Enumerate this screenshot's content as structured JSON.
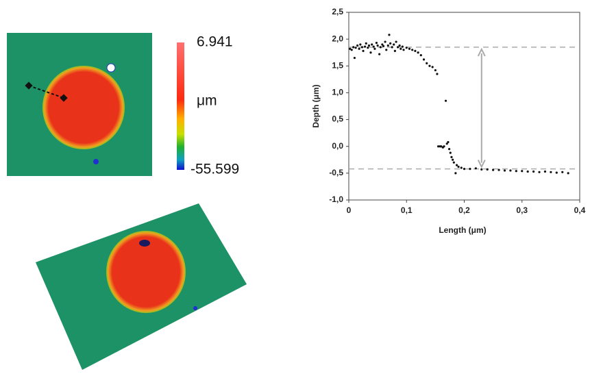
{
  "chart_data": {
    "type": "scatter",
    "xlabel": "Length (μm)",
    "ylabel": "Depth (μm)",
    "color": "#111111",
    "x": [
      0.002,
      0.005,
      0.008,
      0.01,
      0.012,
      0.015,
      0.018,
      0.02,
      0.023,
      0.025,
      0.028,
      0.03,
      0.033,
      0.035,
      0.038,
      0.04,
      0.043,
      0.045,
      0.048,
      0.05,
      0.053,
      0.055,
      0.058,
      0.06,
      0.063,
      0.065,
      0.068,
      0.07,
      0.072,
      0.075,
      0.078,
      0.08,
      0.082,
      0.085,
      0.088,
      0.09,
      0.093,
      0.095,
      0.1,
      0.105,
      0.11,
      0.115,
      0.12,
      0.125,
      0.13,
      0.135,
      0.14,
      0.145,
      0.15,
      0.153,
      0.155,
      0.158,
      0.16,
      0.163,
      0.165,
      0.168,
      0.17,
      0.172,
      0.174,
      0.176,
      0.178,
      0.18,
      0.182,
      0.185,
      0.187,
      0.19,
      0.195,
      0.2,
      0.21,
      0.22,
      0.23,
      0.24,
      0.25,
      0.26,
      0.27,
      0.28,
      0.29,
      0.3,
      0.31,
      0.32,
      0.33,
      0.34,
      0.35,
      0.36,
      0.37,
      0.38
    ],
    "values": [
      1.82,
      1.8,
      1.85,
      1.65,
      1.84,
      1.88,
      1.82,
      1.9,
      1.85,
      1.78,
      1.86,
      1.92,
      1.84,
      1.88,
      1.75,
      1.9,
      1.86,
      1.82,
      1.93,
      1.88,
      1.72,
      1.85,
      1.9,
      1.87,
      1.95,
      1.8,
      1.88,
      2.08,
      1.92,
      1.85,
      1.9,
      1.78,
      1.95,
      1.85,
      1.88,
      1.82,
      1.86,
      1.8,
      1.84,
      1.82,
      1.8,
      1.78,
      1.75,
      1.7,
      1.62,
      1.55,
      1.5,
      1.48,
      1.42,
      1.35,
      0.0,
      0.0,
      0.0,
      -0.02,
      0.0,
      0.85,
      0.05,
      0.08,
      -0.05,
      -0.12,
      -0.2,
      -0.25,
      -0.3,
      -0.5,
      -0.35,
      -0.38,
      -0.4,
      -0.42,
      -0.42,
      -0.41,
      -0.43,
      -0.43,
      -0.44,
      -0.44,
      -0.45,
      -0.45,
      -0.46,
      -0.46,
      -0.47,
      -0.47,
      -0.48,
      -0.47,
      -0.48,
      -0.49,
      -0.48,
      -0.5
    ],
    "xlim": [
      0,
      0.4
    ],
    "ylim": [
      -1.0,
      2.5
    ],
    "xticks": [
      0,
      {
        "value": 0.1,
        "label": "0,1"
      },
      {
        "value": 0.2,
        "label": "0,2"
      },
      {
        "value": 0.3,
        "label": "0,3"
      },
      {
        "value": 0.4,
        "label": "0,4"
      }
    ],
    "yticks": [
      {
        "value": -1.0,
        "label": "-1,0"
      },
      {
        "value": -0.5,
        "label": "-0,5"
      },
      {
        "value": 0.0,
        "label": "0,0"
      },
      {
        "value": 0.5,
        "label": "0,5"
      },
      {
        "value": 1.0,
        "label": "1,0"
      },
      {
        "value": 1.5,
        "label": "1,5"
      },
      {
        "value": 2.0,
        "label": "2,0"
      },
      {
        "value": 2.5,
        "label": "2,5"
      }
    ],
    "reference_lines": [
      1.85,
      -0.42
    ]
  },
  "colorbar": {
    "max": 6.941,
    "unit": "μm",
    "min": -55.599
  }
}
